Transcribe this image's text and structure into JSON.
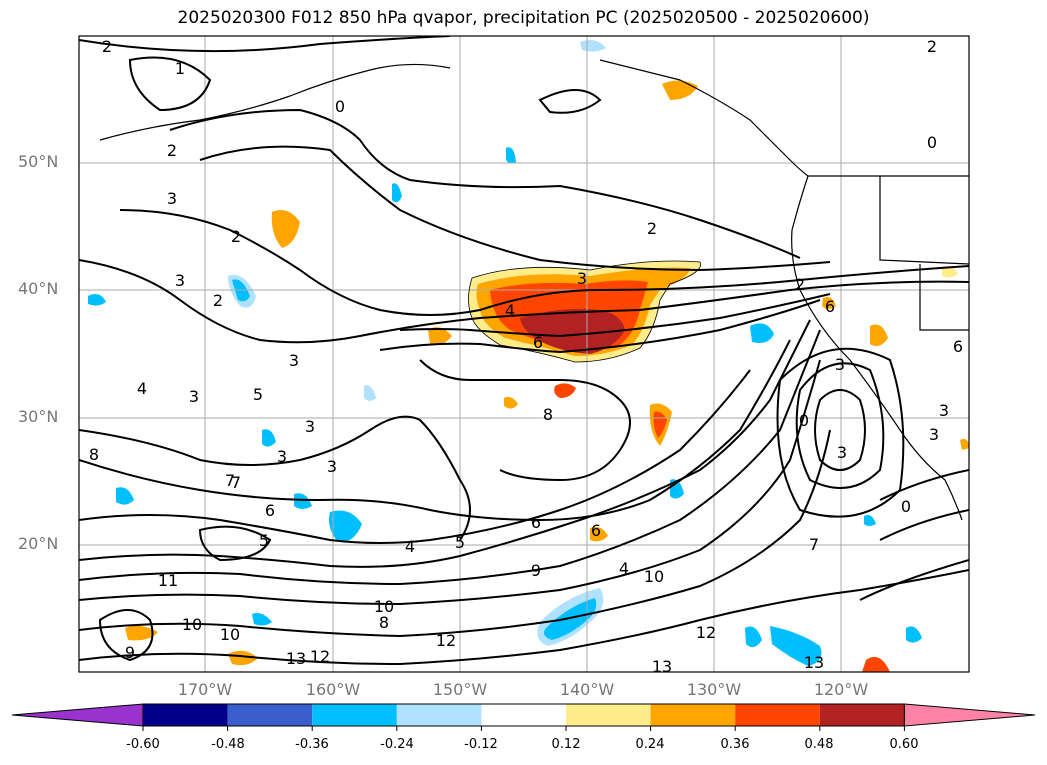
{
  "title": "2025020300 F012 850 hPa qvapor, precipitation PC (2025020500 - 2025020600)",
  "lat_labels": [
    "50°N",
    "40°N",
    "30°N",
    "20°N"
  ],
  "lon_labels": [
    "170°W",
    "160°W",
    "150°W",
    "140°W",
    "130°W",
    "120°W"
  ],
  "colorbar": {
    "ticks": [
      "-0.60",
      "-0.48",
      "-0.36",
      "-0.24",
      "-0.12",
      "0.12",
      "0.24",
      "0.36",
      "0.48",
      "0.60"
    ],
    "colors": [
      "#9a32cd",
      "#00008b",
      "#3a5fcd",
      "#00bfff",
      "#b0e2ff",
      "#ffffff",
      "#ffec8b",
      "#ffa500",
      "#ff4500",
      "#b22222",
      "#ff83a6"
    ]
  },
  "contour_labels": [
    "2",
    "1",
    "0",
    "2",
    "3",
    "2",
    "2",
    "3",
    "4",
    "3",
    "5",
    "3",
    "3",
    "3",
    "6",
    "4",
    "6",
    "5",
    "9",
    "8",
    "7",
    "11",
    "10",
    "10",
    "13",
    "12",
    "10",
    "8",
    "6",
    "4",
    "5",
    "3",
    "2",
    "3",
    "4",
    "6",
    "8",
    "7",
    "9",
    "10",
    "12",
    "13",
    "12",
    "13",
    "6",
    "2",
    "3",
    "0",
    "6",
    "3",
    "3",
    "3",
    "0",
    "7",
    "2",
    "0"
  ]
}
